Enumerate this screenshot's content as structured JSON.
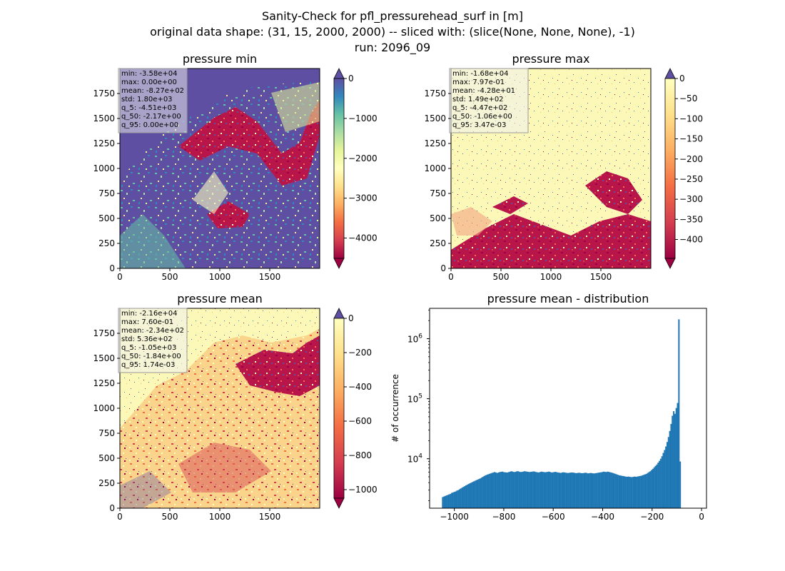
{
  "figure": {
    "title_lines": [
      "Sanity-Check for pfl_pressurehead_surf in [m]",
      "original data shape: (31, 15, 2000, 2000) -- sliced with: (slice(None, None, None), -1)",
      "run: 2096_09"
    ]
  },
  "chart_data": [
    {
      "type": "heatmap",
      "title": "pressure min",
      "xlim": [
        0,
        2000
      ],
      "ylim": [
        0,
        2000
      ],
      "xticks": [
        0,
        500,
        1000,
        1500
      ],
      "yticks": [
        0,
        250,
        500,
        750,
        1000,
        1250,
        1500,
        1750
      ],
      "colormap": "Spectral",
      "colorbar": {
        "ticks": [
          0,
          -1000,
          -2000,
          -3000,
          -4000
        ],
        "range": [
          -4510,
          0
        ]
      },
      "stats": [
        "min: -3.58e+04",
        "max: 0.00e+00",
        "mean: -8.27e+02",
        "std: 1.80e+03",
        "q_5: -4.51e+03",
        "q_50: -2.17e+00",
        "q_95: 0.00e+00"
      ]
    },
    {
      "type": "heatmap",
      "title": "pressure max",
      "xlim": [
        0,
        2000
      ],
      "ylim": [
        0,
        2000
      ],
      "xticks": [
        0,
        500,
        1000,
        1500
      ],
      "yticks": [
        0,
        250,
        500,
        750,
        1000,
        1250,
        1500,
        1750
      ],
      "colormap": "Spectral",
      "colorbar": {
        "ticks": [
          0,
          -50,
          -100,
          -150,
          -200,
          -250,
          -300,
          -350,
          -400
        ],
        "range": [
          -447,
          0
        ]
      },
      "stats": [
        "min: -1.68e+04",
        "max: 7.97e-01",
        "mean: -4.28e+01",
        "std: 1.49e+02",
        "q_5: -4.47e+02",
        "q_50: -1.06e+00",
        "q_95: 3.47e-03"
      ]
    },
    {
      "type": "heatmap",
      "title": "pressure mean",
      "xlim": [
        0,
        2000
      ],
      "ylim": [
        0,
        2000
      ],
      "xticks": [
        0,
        500,
        1000,
        1500
      ],
      "yticks": [
        0,
        250,
        500,
        750,
        1000,
        1250,
        1500,
        1750
      ],
      "colormap": "Spectral",
      "colorbar": {
        "ticks": [
          0,
          -200,
          -400,
          -600,
          -800,
          -1000
        ],
        "range": [
          -1050,
          0
        ]
      },
      "stats": [
        "min: -2.16e+04",
        "max: 7.60e-01",
        "mean: -2.34e+02",
        "std: 5.36e+02",
        "q_5: -1.05e+03",
        "q_50: -1.84e+00",
        "q_95: 1.74e-03"
      ]
    },
    {
      "type": "bar",
      "title": "pressure mean - distribution",
      "xlabel": "",
      "ylabel": "# of occurrence",
      "yscale": "log",
      "xlim": [
        -1100,
        20
      ],
      "ylim": [
        1500,
        3200000
      ],
      "xticks": [
        -1000,
        -800,
        -600,
        -400,
        -200,
        0
      ],
      "ytick_labels": [
        {
          "value": 10000,
          "base": "10",
          "exp": "4"
        },
        {
          "value": 100000,
          "base": "10",
          "exp": "5"
        },
        {
          "value": 1000000,
          "base": "10",
          "exp": "6"
        }
      ],
      "bar_color": "#1f77b4",
      "bins": {
        "start": -1050,
        "width": 5.25
      },
      "values": [
        2300,
        2350,
        2400,
        2450,
        2500,
        2550,
        2600,
        2700,
        2750,
        2800,
        2850,
        2950,
        3000,
        3100,
        3200,
        3300,
        3400,
        3500,
        3600,
        3700,
        3800,
        3900,
        4000,
        4100,
        4200,
        4300,
        4400,
        4500,
        4600,
        4700,
        4850,
        5000,
        5150,
        5300,
        5400,
        5500,
        5600,
        5700,
        5800,
        5900,
        6000,
        5900,
        5800,
        5900,
        6000,
        6050,
        6100,
        6000,
        5950,
        5900,
        5900,
        6000,
        6100,
        6200,
        6100,
        6000,
        6050,
        6150,
        6200,
        6100,
        6000,
        6050,
        6100,
        6200,
        6150,
        6100,
        6050,
        6000,
        6050,
        6100,
        6150,
        6100,
        6000,
        5950,
        5900,
        6000,
        6100,
        6050,
        6000,
        5950,
        6000,
        6050,
        6100,
        6000,
        5900,
        5950,
        6000,
        6050,
        5950,
        5900,
        5850,
        5800,
        5900,
        5950,
        5900,
        5850,
        5800,
        5800,
        5850,
        5900,
        5900,
        5850,
        5800,
        5750,
        5800,
        5850,
        5800,
        5750,
        5750,
        5800,
        5850,
        5800,
        5700,
        5750,
        5800,
        5750,
        5700,
        5700,
        5750,
        5800,
        5850,
        5900,
        5950,
        6000,
        6100,
        6050,
        6000,
        6100,
        6050,
        5950,
        5900,
        5800,
        5700,
        5600,
        5500,
        5400,
        5300,
        5250,
        5200,
        5150,
        5100,
        5050,
        5000,
        5050,
        5000,
        4950,
        4950,
        5000,
        5050,
        5000,
        5050,
        5100,
        5150,
        5200,
        5300,
        5400,
        5500,
        5600,
        5800,
        6000,
        6200,
        6500,
        6800,
        7200,
        7600,
        8000,
        8600,
        9200,
        10000,
        11000,
        12500,
        14000,
        16000,
        19000,
        23000,
        29000,
        38000,
        52000,
        62000,
        56000,
        70000,
        85000,
        2100000,
        9000
      ]
    }
  ]
}
